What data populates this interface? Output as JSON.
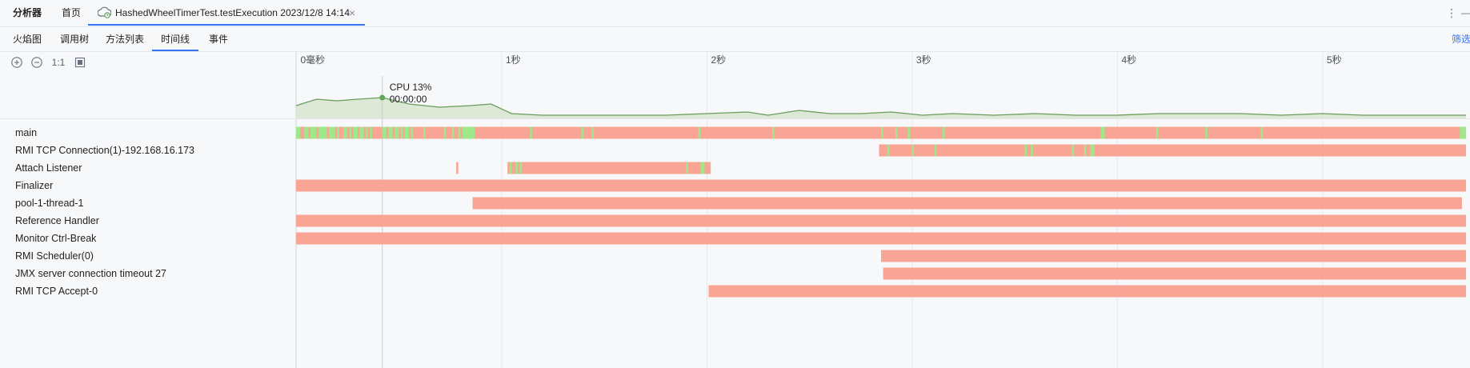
{
  "topbar": {
    "analyzer_label": "分析器",
    "home_label": "首页",
    "run_tab_label": "HashedWheelTimerTest.testExecution 2023/12/8 14:14",
    "close_glyph": "×"
  },
  "subtabs": {
    "items": [
      "火焰图",
      "调用树",
      "方法列表",
      "时间线",
      "事件"
    ],
    "active_index": 3,
    "filter_label": "筛选"
  },
  "toolbar": {
    "zoom_in_icon": "zoom-in-icon",
    "zoom_out_icon": "zoom-out-icon",
    "reset_label": "1:1",
    "fit_icon": "fit-icon"
  },
  "axis": {
    "ticks": [
      "0毫秒",
      "1秒",
      "2秒",
      "3秒",
      "4秒",
      "5秒"
    ],
    "tick_seconds": [
      0,
      1,
      2,
      3,
      4,
      5
    ],
    "total_seconds": 5.7
  },
  "cpu_cursor": {
    "label": "CPU 13%",
    "time": "00:00:00",
    "cursor_seconds": 0.42
  },
  "colors": {
    "running": "#9ee889",
    "waiting": "#f9a595",
    "accent": "#3574f0",
    "cpu_line": "#6a9c5c",
    "cpu_fill": "#dde8d7"
  },
  "cpu_series": [
    [
      0.0,
      8
    ],
    [
      0.1,
      12
    ],
    [
      0.2,
      11
    ],
    [
      0.3,
      12
    ],
    [
      0.42,
      13
    ],
    [
      0.55,
      9
    ],
    [
      0.7,
      7
    ],
    [
      0.85,
      8
    ],
    [
      0.95,
      9
    ],
    [
      1.05,
      3
    ],
    [
      1.2,
      2
    ],
    [
      1.4,
      2
    ],
    [
      1.6,
      2
    ],
    [
      1.8,
      2
    ],
    [
      2.0,
      3
    ],
    [
      2.2,
      4
    ],
    [
      2.3,
      2
    ],
    [
      2.45,
      5
    ],
    [
      2.6,
      3
    ],
    [
      2.75,
      3
    ],
    [
      2.9,
      4
    ],
    [
      3.05,
      2
    ],
    [
      3.2,
      3
    ],
    [
      3.4,
      2
    ],
    [
      3.6,
      3
    ],
    [
      3.8,
      2
    ],
    [
      4.0,
      2
    ],
    [
      4.2,
      3
    ],
    [
      4.4,
      3
    ],
    [
      4.6,
      3
    ],
    [
      4.8,
      2
    ],
    [
      5.0,
      3
    ],
    [
      5.2,
      2
    ],
    [
      5.4,
      2
    ],
    [
      5.6,
      2
    ],
    [
      5.7,
      2
    ]
  ],
  "threads": [
    {
      "name": "main",
      "segments": [
        [
          0.0,
          5.7,
          "waiting"
        ]
      ],
      "running": [
        [
          0.0,
          0.02
        ],
        [
          0.04,
          0.06
        ],
        [
          0.07,
          0.1
        ],
        [
          0.11,
          0.15
        ],
        [
          0.16,
          0.19
        ],
        [
          0.2,
          0.21
        ],
        [
          0.23,
          0.25
        ],
        [
          0.26,
          0.27
        ],
        [
          0.28,
          0.3
        ],
        [
          0.31,
          0.33
        ],
        [
          0.34,
          0.35
        ],
        [
          0.36,
          0.37
        ],
        [
          0.42,
          0.44
        ],
        [
          0.45,
          0.47
        ],
        [
          0.48,
          0.5
        ],
        [
          0.51,
          0.52
        ],
        [
          0.53,
          0.55
        ],
        [
          0.56,
          0.57
        ],
        [
          0.62,
          0.63
        ],
        [
          0.72,
          0.73
        ],
        [
          0.76,
          0.77
        ],
        [
          0.79,
          0.8
        ],
        [
          0.81,
          0.87
        ],
        [
          1.14,
          1.15
        ],
        [
          1.39,
          1.4
        ],
        [
          1.44,
          1.45
        ],
        [
          1.96,
          1.97
        ],
        [
          2.32,
          2.33
        ],
        [
          2.85,
          2.86
        ],
        [
          2.92,
          2.93
        ],
        [
          2.98,
          2.99
        ],
        [
          3.15,
          3.16
        ],
        [
          3.92,
          3.94
        ],
        [
          4.19,
          4.2
        ],
        [
          4.43,
          4.44
        ],
        [
          4.7,
          4.71
        ],
        [
          5.67,
          5.7
        ]
      ]
    },
    {
      "name": "RMI TCP Connection(1)-192.168.16.173",
      "segments": [
        [
          2.84,
          5.7,
          "waiting"
        ]
      ],
      "running": [
        [
          2.88,
          2.89
        ],
        [
          3.0,
          3.01
        ],
        [
          3.11,
          3.12
        ],
        [
          3.55,
          3.56
        ],
        [
          3.58,
          3.59
        ],
        [
          3.78,
          3.79
        ],
        [
          3.84,
          3.85
        ],
        [
          3.87,
          3.89
        ]
      ]
    },
    {
      "name": "Attach Listener",
      "segments": [
        [
          0.78,
          0.79,
          "waiting"
        ],
        [
          1.03,
          2.02,
          "waiting"
        ]
      ],
      "running": [
        [
          1.04,
          1.05
        ],
        [
          1.07,
          1.08
        ],
        [
          1.09,
          1.1
        ],
        [
          1.9,
          1.91
        ],
        [
          1.97,
          1.99
        ]
      ]
    },
    {
      "name": "Finalizer",
      "segments": [
        [
          0.0,
          5.7,
          "waiting"
        ]
      ],
      "running": []
    },
    {
      "name": "pool-1-thread-1",
      "segments": [
        [
          0.86,
          5.68,
          "waiting"
        ]
      ],
      "running": []
    },
    {
      "name": "Reference Handler",
      "segments": [
        [
          0.0,
          5.7,
          "waiting"
        ]
      ],
      "running": []
    },
    {
      "name": "Monitor Ctrl-Break",
      "segments": [
        [
          0.0,
          5.7,
          "waiting"
        ]
      ],
      "running": []
    },
    {
      "name": "RMI Scheduler(0)",
      "segments": [
        [
          2.85,
          5.7,
          "waiting"
        ]
      ],
      "running": []
    },
    {
      "name": "JMX server connection timeout 27",
      "segments": [
        [
          2.86,
          5.7,
          "waiting"
        ]
      ],
      "running": []
    },
    {
      "name": "RMI TCP Accept-0",
      "segments": [
        [
          2.01,
          5.7,
          "waiting"
        ]
      ],
      "running": []
    }
  ]
}
